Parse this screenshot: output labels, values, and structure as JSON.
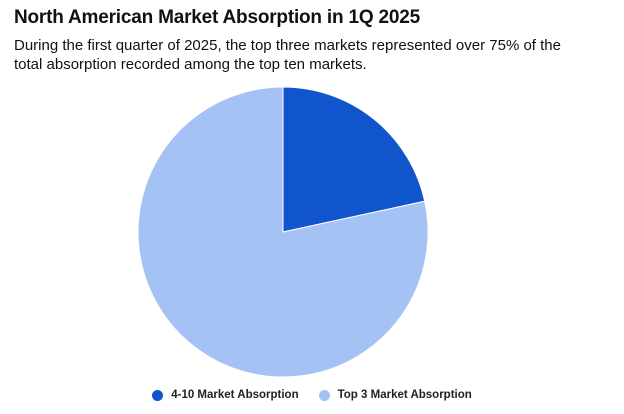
{
  "chart_data": {
    "type": "pie",
    "title": "North American Market Absorption in 1Q 2025",
    "subtitle": "During the first quarter of 2025, the top three markets represented over 75% of the total absorption recorded among the top ten markets.",
    "slices": [
      {
        "label": "4-10 Market Absorption",
        "value": 21.6,
        "color": "#1155cc"
      },
      {
        "label": "Top 3 Market Absorption",
        "value": 78.4,
        "color": "#a4c2f4"
      }
    ],
    "legend_position": "bottom"
  }
}
